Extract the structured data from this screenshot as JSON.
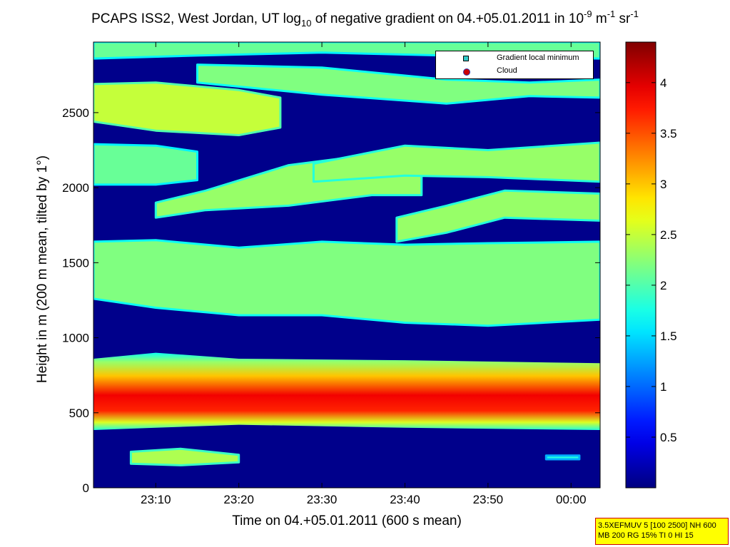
{
  "title": {
    "part1": "PCAPS ISS2, West Jordan, UT log",
    "sub": "10",
    "part2": " of negative gradient on 04.+05.01.2011 in 10",
    "sup1": "-9",
    "part3": " m",
    "sup2": "-1",
    "part4": " sr",
    "sup3": "-1"
  },
  "legend": {
    "items": [
      {
        "label": "Gradient local minimum",
        "color": "#33c9c9",
        "symbol": "square"
      },
      {
        "label": "Cloud",
        "color": "#cc0000",
        "symbol": "circle"
      }
    ]
  },
  "info_box": {
    "line1": "3.5XEFMUV 5 [100 2500] NH 600",
    "line2": "MB 200 RG 15% TI 0 HI 15"
  },
  "chart_data": {
    "type": "heatmap",
    "colormap": "jet",
    "xlabel": "Time on 04.+05.01.2011 (600 s mean)",
    "ylabel": "Height in m (200 m mean, tilted by 1°)",
    "x_ticks": [
      "23:10",
      "23:20",
      "23:30",
      "23:40",
      "23:50",
      "00:00"
    ],
    "x_tick_minutes": [
      1390,
      1400,
      1410,
      1420,
      1430,
      1440
    ],
    "xlim_minutes": [
      1382.5,
      1443.5
    ],
    "y_ticks": [
      "0",
      "500",
      "1000",
      "1500",
      "2000",
      "2500"
    ],
    "y_tick_values": [
      0,
      500,
      1000,
      1500,
      2000,
      2500
    ],
    "ylim": [
      0,
      2970
    ],
    "colorbar": {
      "range": [
        0,
        4.4
      ],
      "ticks": [
        "0.5",
        "1",
        "1.5",
        "2",
        "2.5",
        "3",
        "3.5",
        "4"
      ],
      "tick_values": [
        0.5,
        1,
        1.5,
        2,
        2.5,
        3,
        3.5,
        4
      ]
    },
    "background_value": 0.05,
    "layers": [
      {
        "name": "",
        "value": 2.6,
        "bottom": [
          [
            1382.5,
            385
          ],
          [
            1390,
            400
          ],
          [
            1400,
            420
          ],
          [
            1420,
            400
          ],
          [
            1443.5,
            385
          ]
        ],
        "top": [
          [
            1382.5,
            860
          ],
          [
            1390,
            900
          ],
          [
            1400,
            860
          ],
          [
            1420,
            850
          ],
          [
            1443.5,
            830
          ]
        ],
        "profile": "jet_core",
        "core_value": 3.9
      },
      {
        "name": "",
        "value": 2.2,
        "bottom": [
          [
            1382.5,
            1260
          ],
          [
            1390,
            1200
          ],
          [
            1400,
            1150
          ],
          [
            1410,
            1150
          ],
          [
            1420,
            1100
          ],
          [
            1430,
            1080
          ],
          [
            1443.5,
            1120
          ]
        ],
        "top": [
          [
            1382.5,
            1640
          ],
          [
            1390,
            1650
          ],
          [
            1400,
            1600
          ],
          [
            1410,
            1640
          ],
          [
            1420,
            1620
          ],
          [
            1430,
            1630
          ],
          [
            1443.5,
            1640
          ]
        ],
        "profile": "flat"
      },
      {
        "name": "",
        "value": 2.3,
        "bottom": [
          [
            1390,
            1800
          ],
          [
            1396,
            1850
          ],
          [
            1406,
            1880
          ],
          [
            1416,
            1950
          ],
          [
            1422,
            1950
          ]
        ],
        "top": [
          [
            1390,
            1900
          ],
          [
            1396,
            1980
          ],
          [
            1406,
            2150
          ],
          [
            1416,
            2220
          ],
          [
            1422,
            2200
          ]
        ],
        "profile": "flat"
      },
      {
        "name": "",
        "value": 2.1,
        "bottom": [
          [
            1382.5,
            2020
          ],
          [
            1390,
            2020
          ],
          [
            1395,
            2050
          ]
        ],
        "top": [
          [
            1382.5,
            2290
          ],
          [
            1390,
            2280
          ],
          [
            1395,
            2240
          ]
        ],
        "profile": "flat"
      },
      {
        "name": "",
        "value": 2.3,
        "bottom": [
          [
            1409,
            2040
          ],
          [
            1420,
            2080
          ],
          [
            1430,
            2070
          ],
          [
            1443.5,
            2040
          ]
        ],
        "top": [
          [
            1409,
            2160
          ],
          [
            1420,
            2280
          ],
          [
            1430,
            2250
          ],
          [
            1443.5,
            2300
          ]
        ],
        "profile": "flat"
      },
      {
        "name": "",
        "value": 2.5,
        "bottom": [
          [
            1382.5,
            2440
          ],
          [
            1390,
            2380
          ],
          [
            1400,
            2350
          ],
          [
            1405,
            2400
          ]
        ],
        "top": [
          [
            1382.5,
            2690
          ],
          [
            1390,
            2700
          ],
          [
            1400,
            2650
          ],
          [
            1405,
            2600
          ]
        ],
        "profile": "flat"
      },
      {
        "name": "",
        "value": 2.2,
        "bottom": [
          [
            1395,
            2700
          ],
          [
            1410,
            2620
          ],
          [
            1425,
            2560
          ],
          [
            1435,
            2610
          ],
          [
            1443.5,
            2600
          ]
        ],
        "top": [
          [
            1395,
            2820
          ],
          [
            1410,
            2800
          ],
          [
            1425,
            2720
          ],
          [
            1435,
            2700
          ],
          [
            1443.5,
            2720
          ]
        ],
        "profile": "flat"
      },
      {
        "name": "",
        "value": 2.3,
        "bottom": [
          [
            1419,
            1640
          ],
          [
            1425,
            1700
          ],
          [
            1432,
            1800
          ],
          [
            1443.5,
            1780
          ]
        ],
        "top": [
          [
            1419,
            1800
          ],
          [
            1425,
            1880
          ],
          [
            1432,
            1980
          ],
          [
            1443.5,
            1960
          ]
        ],
        "profile": "flat"
      },
      {
        "name": "",
        "value": 2.4,
        "bottom": [
          [
            1387,
            160
          ],
          [
            1393,
            150
          ],
          [
            1400,
            170
          ]
        ],
        "top": [
          [
            1387,
            240
          ],
          [
            1393,
            260
          ],
          [
            1400,
            220
          ]
        ],
        "profile": "flat"
      },
      {
        "name": "",
        "value": 1.8,
        "bottom": [
          [
            1437,
            190
          ],
          [
            1441,
            190
          ]
        ],
        "top": [
          [
            1437,
            215
          ],
          [
            1441,
            215
          ]
        ],
        "profile": "flat"
      },
      {
        "name": "",
        "value": 2.1,
        "bottom": [
          [
            1382.5,
            2860
          ],
          [
            1395,
            2880
          ],
          [
            1410,
            2900
          ],
          [
            1425,
            2880
          ],
          [
            1443.5,
            2860
          ]
        ],
        "top": [
          [
            1382.5,
            2970
          ],
          [
            1395,
            2970
          ],
          [
            1410,
            2970
          ],
          [
            1425,
            2970
          ],
          [
            1443.5,
            2970
          ]
        ],
        "profile": "flat"
      }
    ]
  }
}
